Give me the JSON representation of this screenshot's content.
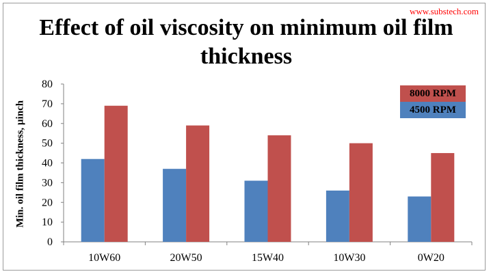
{
  "watermark": "www.substech.com",
  "chart_data": {
    "type": "bar",
    "title": "Effect of oil viscosity on minimum oil film thickness",
    "ylabel": "Min. oil film thickness, µinch",
    "xlabel": "",
    "ylim": [
      0,
      80
    ],
    "yticks": [
      0,
      10,
      20,
      30,
      40,
      50,
      60,
      70,
      80
    ],
    "categories": [
      "10W60",
      "20W50",
      "15W40",
      "10W30",
      "0W20"
    ],
    "series": [
      {
        "name": "4500 RPM",
        "color": "#4f81bd",
        "values": [
          42,
          37,
          31,
          26,
          23
        ]
      },
      {
        "name": "8000 RPM",
        "color": "#c0504d",
        "values": [
          69,
          59,
          54,
          50,
          45
        ]
      }
    ],
    "grid": false,
    "legend_placement": "top-right"
  }
}
